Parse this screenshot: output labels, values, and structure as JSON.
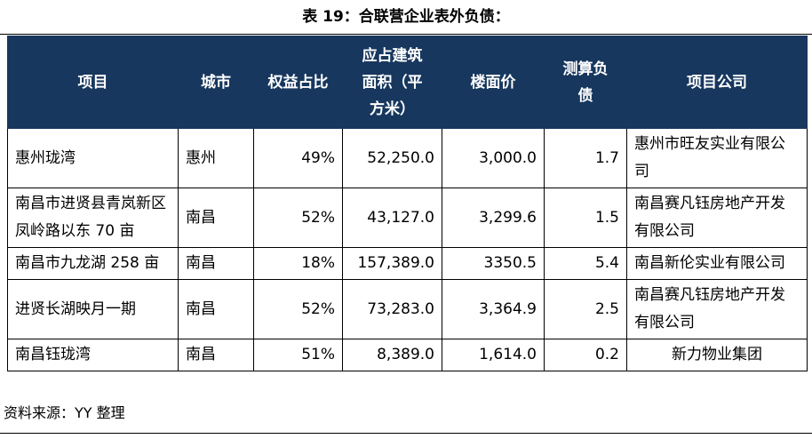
{
  "title": "表 19：合联营企业表外负债：",
  "table": {
    "headers": [
      "项目",
      "城市",
      "权益占比",
      "应占建筑面积（平方米）",
      "楼面价",
      "测算负债",
      "项目公司"
    ],
    "rows": [
      [
        "惠州珑湾",
        "惠州",
        "49%",
        "52,250.0",
        "3,000.0",
        "1.7",
        "惠州市旺友实业有限公司"
      ],
      [
        "南昌市进贤县青岚新区凤岭路以东 70 亩",
        "南昌",
        "52%",
        "43,127.0",
        "3,299.6",
        "1.5",
        "南昌赛凡钰房地产开发有限公司"
      ],
      [
        "南昌市九龙湖 258 亩",
        "南昌",
        "18%",
        "157,389.0",
        "3350.5",
        "5.4",
        "南昌新伦实业有限公司"
      ],
      [
        "进贤长湖映月一期",
        "南昌",
        "52%",
        "73,283.0",
        "3,364.9",
        "2.5",
        "南昌赛凡钰房地产开发有限公司"
      ],
      [
        "南昌钰珑湾",
        "南昌",
        "51%",
        "8,389.0",
        "1,614.0",
        "0.2",
        "新力物业集团"
      ]
    ]
  },
  "source": "资料来源：YY 整理"
}
